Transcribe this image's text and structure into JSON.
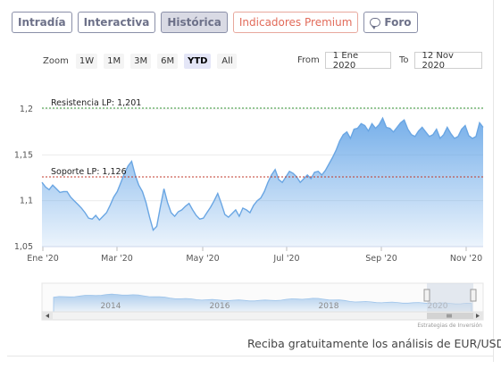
{
  "tabs": [
    {
      "label": "Intradía",
      "active": false
    },
    {
      "label": "Interactiva",
      "active": false
    },
    {
      "label": "Histórica",
      "active": true
    },
    {
      "label": "Indicadores Premium",
      "active": false
    },
    {
      "label": "Foro",
      "active": false,
      "icon": "chat-bubble-icon"
    }
  ],
  "range_selector": {
    "zoom_label": "Zoom",
    "buttons": [
      "1W",
      "1M",
      "3M",
      "6M",
      "YTD",
      "All"
    ],
    "selected": "YTD",
    "from_label": "From",
    "from_value": "1 Ene 2020",
    "to_label": "To",
    "to_value": "12 Nov 2020"
  },
  "chart_data": {
    "type": "area",
    "y_ticks": [
      "1,2",
      "1,15",
      "1,1",
      "1,05"
    ],
    "ylim": [
      1.05,
      1.2
    ],
    "x_ticks": [
      "Ene '20",
      "Mar '20",
      "May '20",
      "Jul '20",
      "Sep '20",
      "Nov '20"
    ],
    "annotations": [
      {
        "label": "Resistencia LP: 1,201",
        "value": 1.201,
        "color": "#3a9a3a"
      },
      {
        "label": "Soporte LP: 1,126",
        "value": 1.126,
        "color": "#c0392b"
      }
    ],
    "series": [
      {
        "values": [
          1.12,
          1.115,
          1.112,
          1.117,
          1.113,
          1.109,
          1.11,
          1.11,
          1.104,
          1.1,
          1.096,
          1.092,
          1.087,
          1.081,
          1.08,
          1.084,
          1.079,
          1.083,
          1.087,
          1.095,
          1.104,
          1.11,
          1.12,
          1.13,
          1.138,
          1.143,
          1.128,
          1.117,
          1.11,
          1.098,
          1.082,
          1.068,
          1.072,
          1.093,
          1.113,
          1.098,
          1.087,
          1.083,
          1.088,
          1.09,
          1.094,
          1.097,
          1.09,
          1.084,
          1.08,
          1.081,
          1.087,
          1.093,
          1.1,
          1.108,
          1.097,
          1.085,
          1.082,
          1.086,
          1.09,
          1.083,
          1.092,
          1.09,
          1.087,
          1.095,
          1.1,
          1.103,
          1.11,
          1.12,
          1.128,
          1.134,
          1.123,
          1.12,
          1.126,
          1.132,
          1.13,
          1.126,
          1.12,
          1.124,
          1.128,
          1.124,
          1.131,
          1.132,
          1.128,
          1.133,
          1.14,
          1.147,
          1.155,
          1.165,
          1.172,
          1.175,
          1.168,
          1.178,
          1.179,
          1.184,
          1.182,
          1.176,
          1.184,
          1.179,
          1.183,
          1.19,
          1.18,
          1.179,
          1.175,
          1.18,
          1.185,
          1.188,
          1.178,
          1.172,
          1.17,
          1.176,
          1.18,
          1.175,
          1.17,
          1.172,
          1.178,
          1.168,
          1.172,
          1.18,
          1.173,
          1.168,
          1.17,
          1.178,
          1.182,
          1.171,
          1.168,
          1.17,
          1.185,
          1.18
        ]
      }
    ],
    "navigator": {
      "x_ticks": [
        "2014",
        "2016",
        "2018",
        "2020"
      ],
      "watermark": "Estrategias de Inversión"
    }
  },
  "footer": {
    "text": "Reciba gratuitamente los análisis de EUR/USD"
  },
  "colors": {
    "tab_border": "#8a8fa8",
    "premium": "#e26b5a",
    "area_fill_top": "#5ea1e6",
    "line": "#6aa6e3"
  }
}
